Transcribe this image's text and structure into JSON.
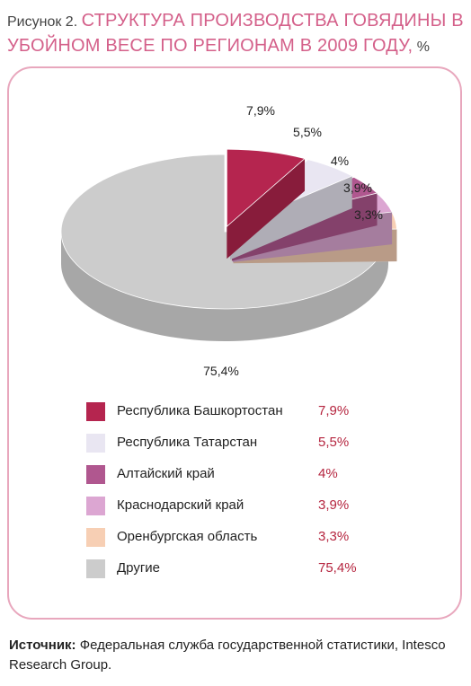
{
  "title": {
    "prefix": "Рисунок 2.",
    "main": "СТРУКТУРА ПРОИЗВОДСТВА ГОВЯДИНЫ В УБОЙНОМ ВЕСЕ ПО РЕГИОНАМ В 2009 ГОДУ,",
    "unit": "%"
  },
  "chart_data": {
    "type": "pie",
    "title": "СТРУКТУРА ПРОИЗВОДСТВА ГОВЯДИНЫ В УБОЙНОМ ВЕСЕ ПО РЕГИОНАМ В 2009 ГОДУ, %",
    "slices": [
      {
        "name": "Республика Башкортостан",
        "value": 7.9,
        "label": "7,9%",
        "color": "#b5254f"
      },
      {
        "name": "Республика Татарстан",
        "value": 5.5,
        "label": "5,5%",
        "color": "#e9e6f2"
      },
      {
        "name": "Алтайский край",
        "value": 4,
        "label": "4%",
        "color": "#b0578f"
      },
      {
        "name": "Краснодарский край",
        "value": 3.9,
        "label": "3,9%",
        "color": "#dca6d2"
      },
      {
        "name": "Оренбургская область",
        "value": 3.3,
        "label": "3,3%",
        "color": "#f7cfb4"
      },
      {
        "name": "Другие",
        "value": 75.4,
        "label": "75,4%",
        "color": "#cccccc"
      }
    ]
  },
  "source": {
    "label": "Источник:",
    "text": " Федеральная служба государственной статистики, Intesco Research Group."
  }
}
